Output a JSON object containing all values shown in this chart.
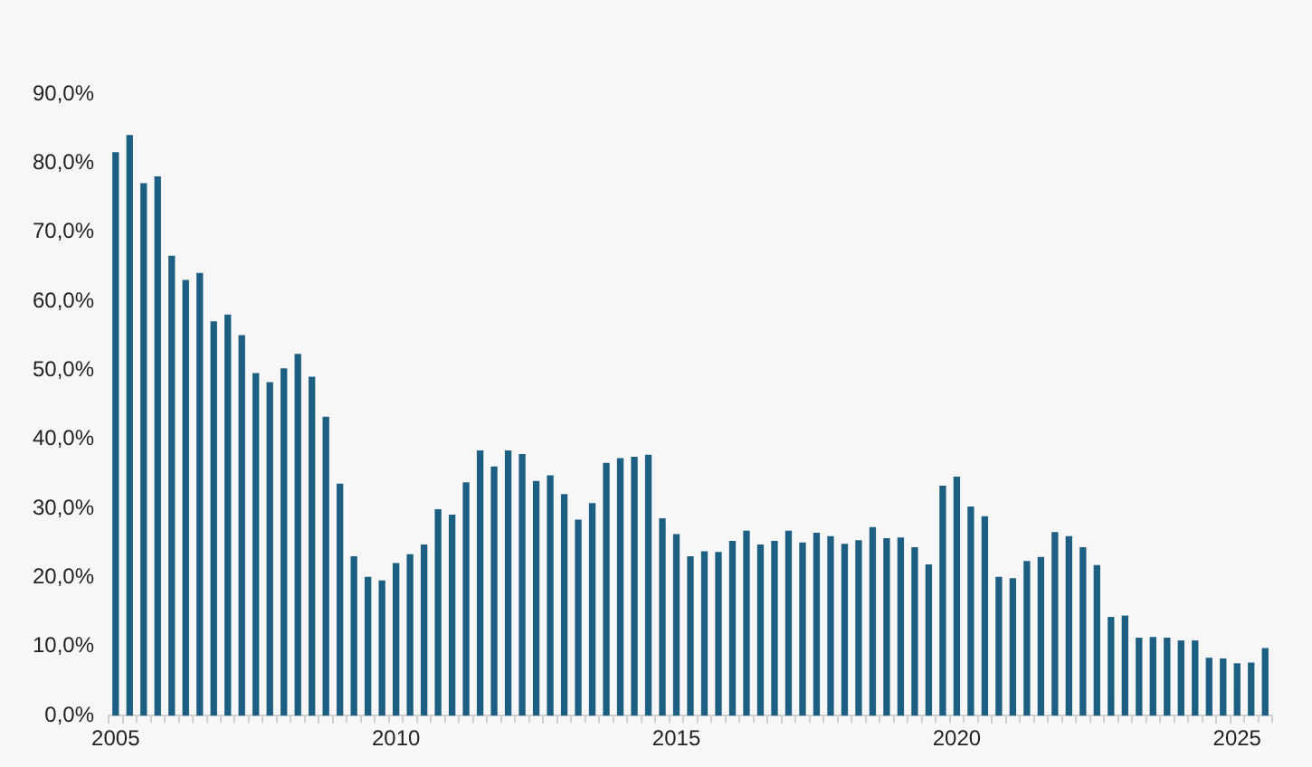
{
  "chart_data": {
    "type": "bar",
    "categories": [
      "2005",
      null,
      null,
      null,
      null,
      null,
      null,
      null,
      null,
      null,
      null,
      null,
      null,
      null,
      null,
      null,
      null,
      null,
      null,
      null,
      "2010",
      null,
      null,
      null,
      null,
      null,
      null,
      null,
      null,
      null,
      null,
      null,
      null,
      null,
      null,
      null,
      null,
      null,
      null,
      null,
      "2015",
      null,
      null,
      null,
      null,
      null,
      null,
      null,
      null,
      null,
      null,
      null,
      null,
      null,
      null,
      null,
      null,
      null,
      null,
      null,
      "2020",
      null,
      null,
      null,
      null,
      null,
      null,
      null,
      null,
      null,
      null,
      null,
      null,
      null,
      null,
      null,
      null,
      null,
      null,
      null,
      "2025",
      null,
      null
    ],
    "values": [
      81.5,
      84,
      77,
      78,
      66.5,
      63,
      64,
      57,
      58,
      55,
      49.5,
      48.2,
      50.2,
      52.3,
      49,
      43.2,
      33.5,
      23,
      20,
      19.5,
      22,
      23.3,
      24.7,
      29.8,
      29,
      33.7,
      38.3,
      36,
      38.3,
      37.8,
      33.9,
      34.7,
      32,
      28.3,
      30.7,
      36.5,
      37.2,
      37.4,
      37.7,
      28.5,
      26.2,
      23,
      23.7,
      23.6,
      25.2,
      26.7,
      24.7,
      25.2,
      26.7,
      25,
      26.4,
      25.9,
      24.8,
      25.3,
      27.2,
      25.6,
      25.7,
      24.3,
      21.8,
      33.2,
      34.5,
      30.2,
      28.8,
      20,
      19.8,
      22.3,
      22.9,
      26.5,
      25.9,
      24.3,
      21.7,
      14.2,
      14.4,
      11.2,
      11.3,
      11.2,
      10.8,
      10.8,
      8.3,
      8.2,
      7.5,
      7.6,
      9.7
    ],
    "color": "#1d5f82",
    "ylim": [
      0,
      90
    ],
    "yticks": [
      {
        "value": 0,
        "label": "0,0%"
      },
      {
        "value": 10,
        "label": "10,0%"
      },
      {
        "value": 20,
        "label": "20,0%"
      },
      {
        "value": 30,
        "label": "30,0%"
      },
      {
        "value": 40,
        "label": "40,0%"
      },
      {
        "value": 50,
        "label": "50,0%"
      },
      {
        "value": 60,
        "label": "60,0%"
      },
      {
        "value": 70,
        "label": "70,0%"
      },
      {
        "value": 80,
        "label": "80,0%"
      },
      {
        "value": 90,
        "label": "90,0%"
      }
    ],
    "grid": false,
    "legend": false
  }
}
